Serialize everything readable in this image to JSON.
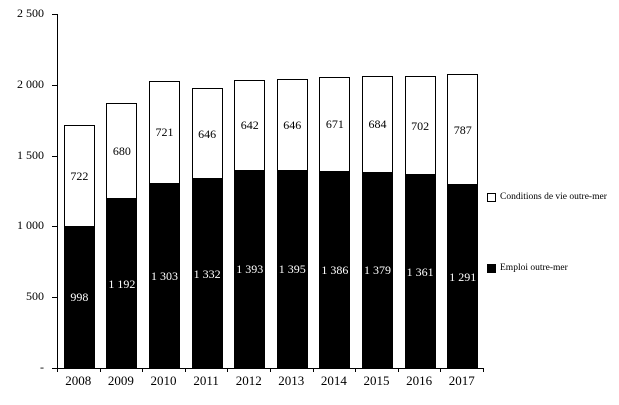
{
  "chart_data": {
    "type": "bar",
    "stacked": true,
    "title": "",
    "xlabel": "",
    "ylabel": "",
    "categories": [
      "2008",
      "2009",
      "2010",
      "2011",
      "2012",
      "2013",
      "2014",
      "2015",
      "2016",
      "2017"
    ],
    "series": [
      {
        "name": "Emploi outre-mer",
        "color": "#000000",
        "label_color": "#ffffff",
        "values": [
          998,
          1192,
          1303,
          1332,
          1393,
          1395,
          1386,
          1379,
          1361,
          1291
        ],
        "labels": [
          "998",
          "1 192",
          "1 303",
          "1 332",
          "1 393",
          "1 395",
          "1 386",
          "1 379",
          "1 361",
          "1 291"
        ]
      },
      {
        "name": "Conditions de vie outre-mer",
        "color": "#ffffff",
        "label_color": "#000000",
        "values": [
          722,
          680,
          721,
          646,
          642,
          646,
          671,
          684,
          702,
          787
        ],
        "labels": [
          "722",
          "680",
          "721",
          "646",
          "642",
          "646",
          "671",
          "684",
          "702",
          "787"
        ]
      }
    ],
    "ylim": [
      0,
      2500
    ],
    "yticks": [
      0,
      500,
      1000,
      1500,
      2000,
      2500
    ],
    "ytick_labels": [
      "-",
      "500",
      "1 000",
      "1 500",
      "2 000",
      "2 500"
    ],
    "grid": false,
    "legend_position": "right"
  },
  "legend": {
    "items": [
      {
        "label": "Conditions de vie outre-mer",
        "swatch": "white-square"
      },
      {
        "label": "Emploi outre-mer",
        "swatch": "black-square"
      }
    ]
  }
}
